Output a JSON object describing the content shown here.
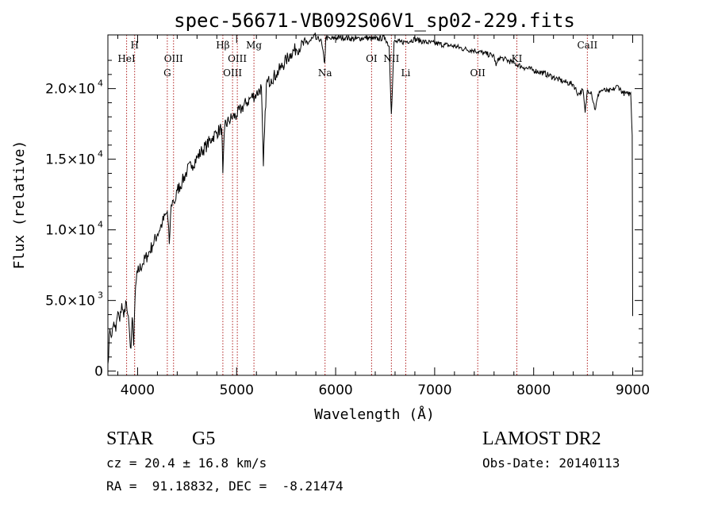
{
  "chart_data": {
    "type": "line",
    "title": "spec-56671-VB092S06V1_sp02-229.fits",
    "xlabel": "Wavelength (Å)",
    "ylabel": "Flux (relative)",
    "xlim": [
      3700,
      9100
    ],
    "ylim": [
      -300,
      23800
    ],
    "grid": false,
    "x_ticks": [
      4000,
      5000,
      6000,
      7000,
      8000,
      9000
    ],
    "x_tick_labels": [
      "4000",
      "5000",
      "6000",
      "7000",
      "8000",
      "9000"
    ],
    "y_ticks": [
      {
        "value": 0,
        "mantissa": "0",
        "exp": ""
      },
      {
        "value": 5000,
        "mantissa": "5.0×10",
        "exp": "3"
      },
      {
        "value": 10000,
        "mantissa": "1.0×10",
        "exp": "4"
      },
      {
        "value": 15000,
        "mantissa": "1.5×10",
        "exp": "4"
      },
      {
        "value": 20000,
        "mantissa": "2.0×10",
        "exp": "4"
      }
    ],
    "series": [
      {
        "color": "#000000",
        "x": [
          3700,
          3720,
          3740,
          3760,
          3780,
          3800,
          3820,
          3840,
          3860,
          3880,
          3900,
          3920,
          3933,
          3945,
          3960,
          3968,
          3980,
          4000,
          4050,
          4100,
          4150,
          4200,
          4250,
          4300,
          4320,
          4340,
          4360,
          4380,
          4400,
          4450,
          4500,
          4550,
          4600,
          4650,
          4700,
          4750,
          4800,
          4850,
          4861,
          4880,
          4920,
          4960,
          5000,
          5050,
          5100,
          5150,
          5200,
          5250,
          5270,
          5300,
          5350,
          5400,
          5450,
          5500,
          5550,
          5600,
          5650,
          5700,
          5750,
          5800,
          5850,
          5890,
          5900,
          5950,
          6000,
          6100,
          6200,
          6300,
          6400,
          6500,
          6540,
          6563,
          6590,
          6650,
          6700,
          6800,
          6900,
          7000,
          7100,
          7200,
          7300,
          7400,
          7500,
          7600,
          7620,
          7650,
          7700,
          7800,
          7900,
          8000,
          8100,
          8200,
          8300,
          8400,
          8450,
          8498,
          8520,
          8542,
          8580,
          8620,
          8662,
          8700,
          8750,
          8800,
          8850,
          8900,
          8950,
          8980,
          8995,
          9000
        ],
        "y": [
          500,
          3000,
          2500,
          3500,
          2800,
          4200,
          3500,
          4800,
          3800,
          5000,
          4000,
          2500,
          1600,
          3800,
          1800,
          4000,
          6000,
          7000,
          7600,
          8200,
          8900,
          9700,
          10500,
          11300,
          9000,
          11800,
          12100,
          12000,
          12800,
          13400,
          14200,
          14600,
          15100,
          15600,
          16000,
          16500,
          16900,
          17200,
          14000,
          17300,
          17700,
          18000,
          18100,
          18600,
          19000,
          19400,
          19600,
          20100,
          14500,
          20300,
          20700,
          21000,
          21500,
          22000,
          22500,
          22800,
          23000,
          23200,
          23400,
          23500,
          23500,
          21800,
          23600,
          23500,
          23600,
          23600,
          23500,
          23600,
          23500,
          23600,
          23000,
          18200,
          23300,
          23300,
          23300,
          23500,
          23300,
          23200,
          23100,
          23000,
          22800,
          22700,
          22500,
          22300,
          21600,
          22200,
          22100,
          21800,
          21500,
          21300,
          21100,
          20800,
          20500,
          20300,
          19600,
          19900,
          18300,
          19900,
          19800,
          18500,
          19800,
          19900,
          19800,
          19900,
          20200,
          19700,
          19600,
          19700,
          16700,
          3900
        ]
      }
    ],
    "lines": [
      {
        "x": 3889,
        "label": "HeI",
        "row": 2
      },
      {
        "x": 3970,
        "label": "H",
        "row": 1
      },
      {
        "x": 4300,
        "label": "G",
        "row": 3
      },
      {
        "x": 4363,
        "label": "OIII",
        "row": 2
      },
      {
        "x": 4861,
        "label": "Hβ",
        "row": 1
      },
      {
        "x": 4959,
        "label": "OIII",
        "row": 3
      },
      {
        "x": 5007,
        "label": "OIII",
        "row": 2
      },
      {
        "x": 5175,
        "label": "Mg",
        "row": 1
      },
      {
        "x": 5893,
        "label": "Na",
        "row": 3
      },
      {
        "x": 6363,
        "label": "OI",
        "row": 2
      },
      {
        "x": 6563,
        "label": "NII",
        "row": 2
      },
      {
        "x": 6708,
        "label": "Li",
        "row": 3
      },
      {
        "x": 7435,
        "label": "OII",
        "row": 3
      },
      {
        "x": 7830,
        "label": "KI",
        "row": 2
      },
      {
        "x": 8542,
        "label": "CaII",
        "row": 1
      }
    ]
  },
  "info": {
    "object_class": "STAR",
    "subclass": "G5",
    "survey": "LAMOST DR2",
    "velocity": "cz = 20.4 ± 16.8 km/s",
    "obs_date": "Obs-Date: 20140113",
    "coords": "RA =  91.18832, DEC =  -8.21474"
  }
}
